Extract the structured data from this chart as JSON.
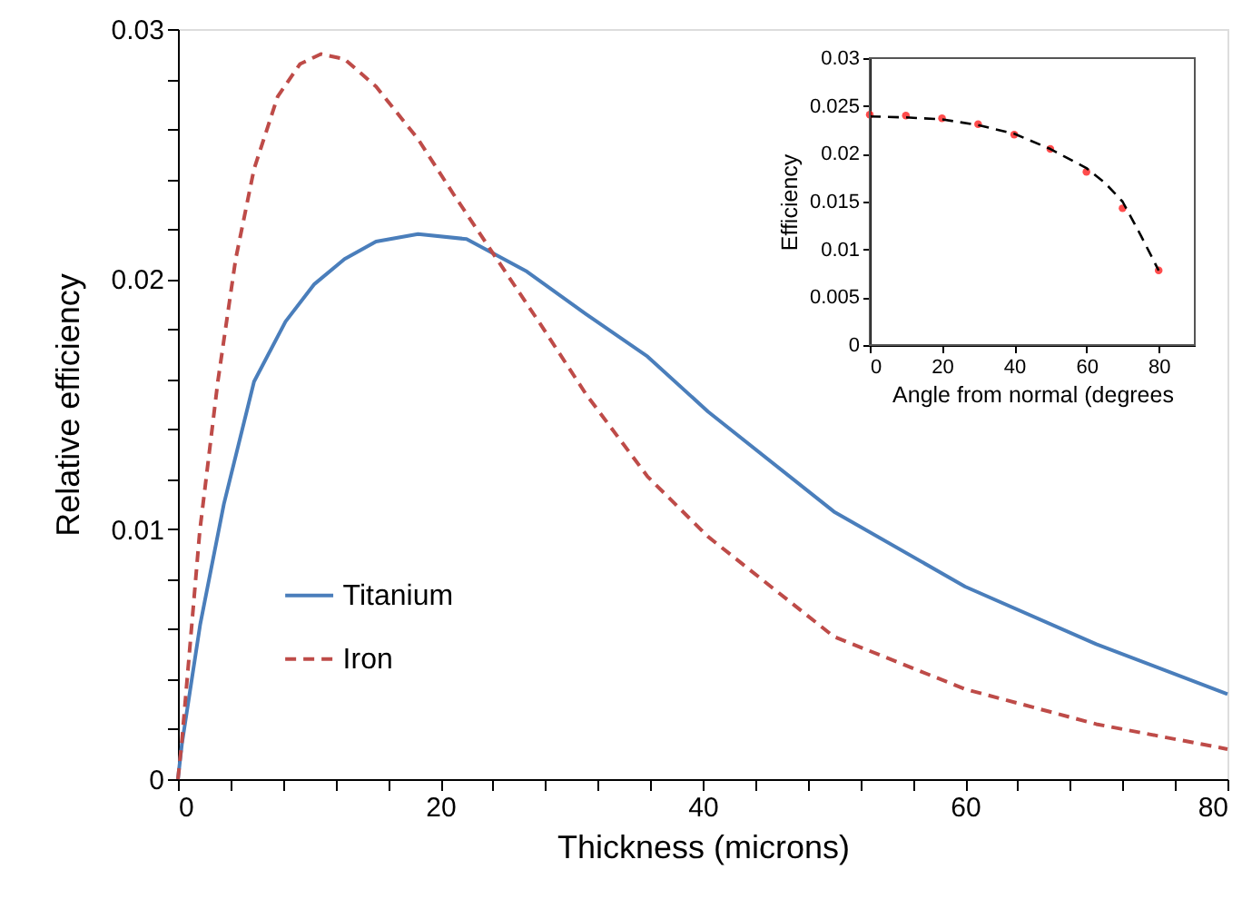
{
  "chart_data": [
    {
      "type": "line",
      "xlabel": "Thickness (microns)",
      "ylabel": "Relative efficiency",
      "xlim": [
        0,
        80
      ],
      "xticks": [
        0,
        {
          "value": 4,
          "label": null
        },
        {
          "value": 8,
          "label": null
        },
        {
          "value": 12,
          "label": null
        },
        {
          "value": 16,
          "label": null
        },
        20,
        {
          "value": 24,
          "label": null
        },
        {
          "value": 28,
          "label": null
        },
        {
          "value": 32,
          "label": null
        },
        {
          "value": 36,
          "label": null
        },
        40,
        {
          "value": 44,
          "label": null
        },
        {
          "value": 48,
          "label": null
        },
        {
          "value": 52,
          "label": null
        },
        {
          "value": 56,
          "label": null
        },
        60,
        {
          "value": 64,
          "label": null
        },
        {
          "value": 68,
          "label": null
        },
        {
          "value": 72,
          "label": null
        },
        {
          "value": 76,
          "label": null
        },
        80
      ],
      "ylim": [
        0,
        0.03
      ],
      "yticks": [
        0,
        {
          "value": 0.002,
          "label": null
        },
        {
          "value": 0.004,
          "label": null
        },
        {
          "value": 0.006,
          "label": null
        },
        {
          "value": 0.008,
          "label": null
        },
        0.01,
        {
          "value": 0.012,
          "label": null
        },
        {
          "value": 0.014,
          "label": null
        },
        {
          "value": 0.016,
          "label": null
        },
        {
          "value": 0.018,
          "label": null
        },
        0.02,
        {
          "value": 0.022,
          "label": null
        },
        {
          "value": 0.024,
          "label": null
        },
        {
          "value": 0.026,
          "label": null
        },
        {
          "value": 0.028,
          "label": null
        },
        0.03
      ],
      "grid": false,
      "legend": "left",
      "marker": "none",
      "series": [
        {
          "name": "Titanium",
          "color": "#4a7ebb",
          "line_style": "solid",
          "x": [
            0,
            0.3,
            1.7,
            3.5,
            5.8,
            8.2,
            10.4,
            12.7,
            15.1,
            18.3,
            22,
            26.6,
            31.1,
            35.8,
            40.4,
            50,
            60,
            70,
            80
          ],
          "values": [
            0,
            0.0014,
            0.0062,
            0.011,
            0.0159,
            0.0183,
            0.0198,
            0.0208,
            0.0215,
            0.0218,
            0.0216,
            0.0203,
            0.0186,
            0.0169,
            0.0147,
            0.0107,
            0.0077,
            0.0054,
            0.0034
          ]
        },
        {
          "name": "Iron",
          "color": "#be4b48",
          "line_style": "dashed",
          "x": [
            0,
            0.28,
            1.66,
            3.04,
            4.4,
            5.8,
            7.6,
            9.3,
            10.9,
            12.7,
            15.1,
            18.3,
            21,
            23.8,
            27.5,
            31.1,
            35.8,
            40.4,
            50,
            60,
            70,
            80
          ],
          "values": [
            0,
            0.0014,
            0.0099,
            0.0159,
            0.0208,
            0.0244,
            0.0273,
            0.0286,
            0.029,
            0.0288,
            0.0277,
            0.0256,
            0.0234,
            0.0212,
            0.0183,
            0.0154,
            0.0121,
            0.0097,
            0.0057,
            0.0036,
            0.0022,
            0.0012
          ]
        }
      ]
    },
    {
      "type": "scatter",
      "xlabel": "Angle from normal (degrees",
      "ylabel": "Efficiency",
      "xlim": [
        0,
        90
      ],
      "xticks": [
        0,
        20,
        40,
        60,
        80
      ],
      "ylim": [
        0,
        0.03
      ],
      "yticks": [
        0,
        0.005,
        0.01,
        0.015,
        0.02,
        0.025,
        0.03
      ],
      "grid": false,
      "series": [
        {
          "color": "#ff0000",
          "marker": "circle",
          "x": [
            0,
            10,
            20,
            30,
            40,
            50,
            60,
            70,
            80
          ],
          "values": [
            0.0241,
            0.024,
            0.0237,
            0.0231,
            0.022,
            0.0205,
            0.0181,
            0.0143,
            0.0078
          ]
        },
        {
          "type": "line",
          "color": "#000000",
          "line_style": "dashed",
          "marker": "none",
          "x": [
            0,
            10,
            20,
            30,
            40,
            50,
            60,
            65,
            70,
            75,
            80
          ],
          "values": [
            0.0239,
            0.0238,
            0.0236,
            0.023,
            0.0221,
            0.0205,
            0.0185,
            0.017,
            0.015,
            0.0115,
            0.0078
          ]
        }
      ]
    }
  ]
}
